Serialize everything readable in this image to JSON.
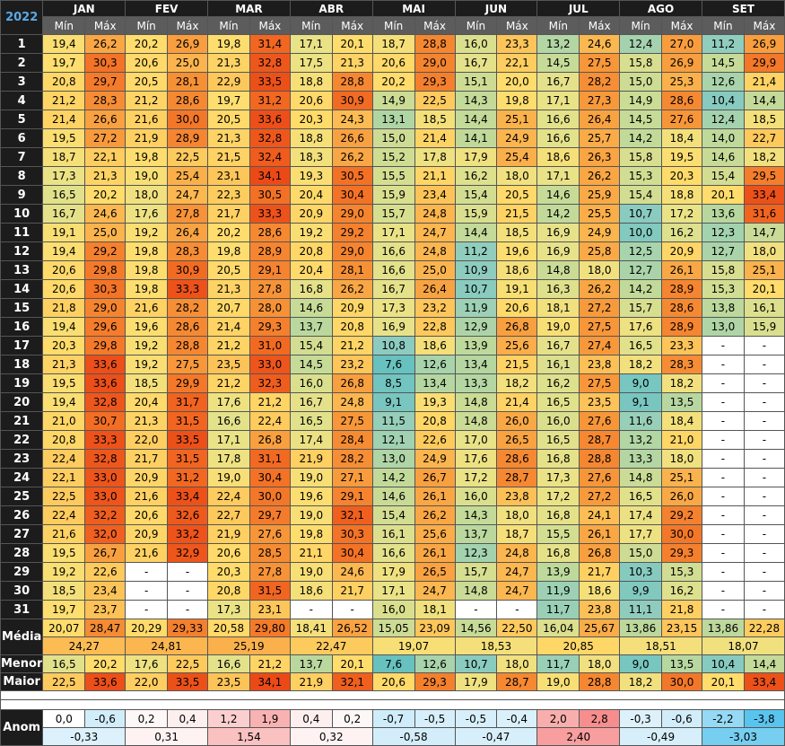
{
  "year": "2022",
  "sub_min": "Mín",
  "sub_max": "Máx",
  "months": [
    "JAN",
    "FEV",
    "MAR",
    "ABR",
    "MAI",
    "JUN",
    "JUL",
    "AGO",
    "SET"
  ],
  "days": [
    {
      "label": "1",
      "v": [
        "19,4",
        "26,2",
        "20,2",
        "26,9",
        "19,8",
        "31,4",
        "17,1",
        "20,1",
        "18,7",
        "28,8",
        "16,0",
        "23,3",
        "13,2",
        "24,6",
        "12,4",
        "27,0",
        "11,2",
        "26,9"
      ]
    },
    {
      "label": "2",
      "v": [
        "19,7",
        "30,3",
        "20,6",
        "25,0",
        "21,3",
        "32,8",
        "17,5",
        "21,3",
        "20,6",
        "29,0",
        "16,7",
        "22,1",
        "14,5",
        "27,5",
        "15,8",
        "26,9",
        "14,5",
        "29,9"
      ]
    },
    {
      "label": "3",
      "v": [
        "20,8",
        "29,7",
        "20,5",
        "28,1",
        "22,9",
        "33,5",
        "18,8",
        "28,8",
        "20,2",
        "29,3",
        "15,1",
        "20,0",
        "16,7",
        "28,2",
        "15,0",
        "25,3",
        "12,6",
        "21,4"
      ]
    },
    {
      "label": "4",
      "v": [
        "21,2",
        "28,3",
        "21,2",
        "28,6",
        "19,7",
        "31,2",
        "20,6",
        "30,9",
        "14,9",
        "22,5",
        "14,3",
        "19,8",
        "17,1",
        "27,3",
        "14,9",
        "28,6",
        "10,4",
        "14,4"
      ]
    },
    {
      "label": "5",
      "v": [
        "21,4",
        "26,6",
        "21,6",
        "30,0",
        "20,5",
        "33,6",
        "20,3",
        "24,3",
        "13,1",
        "18,5",
        "14,4",
        "25,1",
        "16,6",
        "26,4",
        "14,5",
        "27,6",
        "12,4",
        "18,5"
      ]
    },
    {
      "label": "6",
      "v": [
        "19,5",
        "27,2",
        "21,9",
        "28,9",
        "21,3",
        "32,8",
        "18,8",
        "26,6",
        "15,0",
        "21,4",
        "14,1",
        "24,9",
        "16,6",
        "25,7",
        "14,2",
        "18,4",
        "14,0",
        "22,7"
      ]
    },
    {
      "label": "7",
      "v": [
        "18,7",
        "22,1",
        "19,8",
        "22,5",
        "21,5",
        "32,4",
        "18,3",
        "26,2",
        "15,2",
        "17,8",
        "17,9",
        "25,4",
        "18,6",
        "26,3",
        "15,8",
        "19,5",
        "14,6",
        "18,2"
      ]
    },
    {
      "label": "8",
      "v": [
        "17,3",
        "21,3",
        "19,0",
        "25,4",
        "23,1",
        "34,1",
        "19,3",
        "30,5",
        "15,5",
        "21,1",
        "16,2",
        "18,0",
        "17,1",
        "26,2",
        "15,3",
        "20,3",
        "15,4",
        "29,5"
      ]
    },
    {
      "label": "9",
      "v": [
        "16,5",
        "20,2",
        "18,0",
        "24,7",
        "22,3",
        "30,5",
        "20,4",
        "30,4",
        "15,9",
        "23,4",
        "15,4",
        "20,5",
        "14,6",
        "25,9",
        "15,4",
        "18,8",
        "20,1",
        "33,4"
      ]
    },
    {
      "label": "10",
      "v": [
        "16,7",
        "24,6",
        "17,6",
        "27,8",
        "21,7",
        "33,3",
        "20,9",
        "29,0",
        "15,7",
        "24,8",
        "15,9",
        "21,5",
        "14,2",
        "25,5",
        "10,7",
        "17,2",
        "13,6",
        "31,6"
      ]
    },
    {
      "label": "11",
      "v": [
        "19,1",
        "25,0",
        "19,2",
        "26,4",
        "20,2",
        "28,6",
        "19,2",
        "29,2",
        "17,1",
        "24,7",
        "14,4",
        "18,5",
        "16,9",
        "24,9",
        "10,0",
        "16,2",
        "12,3",
        "14,7"
      ]
    },
    {
      "label": "12",
      "v": [
        "19,4",
        "29,2",
        "19,8",
        "28,3",
        "19,8",
        "28,9",
        "20,8",
        "29,0",
        "16,6",
        "24,8",
        "11,2",
        "19,6",
        "16,9",
        "25,8",
        "12,5",
        "20,9",
        "12,7",
        "18,0"
      ]
    },
    {
      "label": "13",
      "v": [
        "20,6",
        "29,8",
        "19,8",
        "30,9",
        "20,5",
        "29,1",
        "20,4",
        "28,1",
        "16,6",
        "25,0",
        "10,9",
        "18,6",
        "14,8",
        "18,0",
        "12,7",
        "26,1",
        "15,8",
        "25,1"
      ]
    },
    {
      "label": "14",
      "v": [
        "20,6",
        "30,3",
        "19,8",
        "33,3",
        "21,3",
        "27,8",
        "16,8",
        "26,2",
        "16,7",
        "26,4",
        "10,7",
        "19,1",
        "16,3",
        "26,2",
        "14,2",
        "28,9",
        "15,3",
        "20,1"
      ]
    },
    {
      "label": "15",
      "v": [
        "21,8",
        "29,0",
        "21,6",
        "28,2",
        "20,7",
        "28,0",
        "14,6",
        "20,9",
        "17,3",
        "23,2",
        "11,9",
        "20,6",
        "18,1",
        "27,2",
        "15,7",
        "28,6",
        "13,8",
        "16,1"
      ]
    },
    {
      "label": "16",
      "v": [
        "19,4",
        "29,6",
        "19,6",
        "28,6",
        "21,4",
        "29,3",
        "13,7",
        "20,8",
        "16,9",
        "22,8",
        "12,9",
        "26,8",
        "19,0",
        "27,5",
        "17,6",
        "28,9",
        "13,0",
        "15,9"
      ]
    },
    {
      "label": "17",
      "v": [
        "20,3",
        "29,8",
        "19,2",
        "28,8",
        "21,2",
        "31,0",
        "15,4",
        "21,2",
        "10,8",
        "18,6",
        "13,9",
        "25,6",
        "16,7",
        "27,4",
        "16,5",
        "23,3",
        "-",
        "-"
      ]
    },
    {
      "label": "18",
      "v": [
        "21,3",
        "33,6",
        "19,2",
        "27,5",
        "23,5",
        "33,0",
        "14,5",
        "23,2",
        "7,6",
        "12,6",
        "13,4",
        "21,5",
        "16,1",
        "23,8",
        "18,2",
        "28,3",
        "-",
        "-"
      ]
    },
    {
      "label": "19",
      "v": [
        "19,5",
        "33,6",
        "18,5",
        "29,9",
        "21,2",
        "32,3",
        "16,0",
        "26,8",
        "8,5",
        "13,4",
        "13,3",
        "18,2",
        "16,2",
        "27,5",
        "9,0",
        "18,2",
        "-",
        "-"
      ]
    },
    {
      "label": "20",
      "v": [
        "19,4",
        "32,8",
        "20,4",
        "31,7",
        "17,6",
        "21,2",
        "16,7",
        "24,8",
        "9,1",
        "19,3",
        "14,8",
        "21,4",
        "16,5",
        "23,5",
        "9,1",
        "13,5",
        "-",
        "-"
      ]
    },
    {
      "label": "21",
      "v": [
        "21,0",
        "30,7",
        "21,3",
        "31,5",
        "16,6",
        "22,4",
        "16,5",
        "27,5",
        "11,5",
        "20,8",
        "14,8",
        "26,0",
        "16,0",
        "27,6",
        "11,6",
        "18,4",
        "-",
        "-"
      ]
    },
    {
      "label": "22",
      "v": [
        "20,8",
        "33,3",
        "22,0",
        "33,5",
        "17,1",
        "26,8",
        "17,4",
        "28,4",
        "12,1",
        "22,6",
        "17,0",
        "26,5",
        "16,5",
        "28,7",
        "13,2",
        "21,0",
        "-",
        "-"
      ]
    },
    {
      "label": "23",
      "v": [
        "22,4",
        "32,8",
        "21,7",
        "31,5",
        "17,8",
        "31,1",
        "21,9",
        "28,2",
        "13,0",
        "24,9",
        "17,6",
        "28,6",
        "16,8",
        "28,8",
        "13,3",
        "18,0",
        "-",
        "-"
      ]
    },
    {
      "label": "24",
      "v": [
        "22,1",
        "33,0",
        "20,9",
        "31,2",
        "19,0",
        "30,4",
        "19,0",
        "27,1",
        "14,2",
        "26,7",
        "17,2",
        "28,7",
        "17,3",
        "27,6",
        "14,8",
        "25,1",
        "-",
        "-"
      ]
    },
    {
      "label": "25",
      "v": [
        "22,5",
        "33,0",
        "21,6",
        "33,4",
        "22,4",
        "30,0",
        "19,6",
        "29,1",
        "14,6",
        "26,1",
        "16,0",
        "23,8",
        "17,2",
        "27,2",
        "16,5",
        "26,0",
        "-",
        "-"
      ]
    },
    {
      "label": "26",
      "v": [
        "22,4",
        "32,2",
        "20,6",
        "32,6",
        "22,7",
        "29,7",
        "19,0",
        "32,1",
        "15,4",
        "26,2",
        "14,3",
        "18,0",
        "16,8",
        "24,1",
        "17,4",
        "29,2",
        "-",
        "-"
      ]
    },
    {
      "label": "27",
      "v": [
        "21,6",
        "32,0",
        "20,9",
        "33,2",
        "21,9",
        "27,6",
        "19,8",
        "30,3",
        "16,1",
        "25,6",
        "13,7",
        "18,7",
        "15,5",
        "26,1",
        "17,7",
        "30,0",
        "-",
        "-"
      ]
    },
    {
      "label": "28",
      "v": [
        "19,5",
        "26,7",
        "21,6",
        "32,9",
        "20,6",
        "28,5",
        "21,1",
        "30,4",
        "16,6",
        "26,1",
        "12,3",
        "24,8",
        "16,8",
        "26,8",
        "15,0",
        "29,3",
        "-",
        "-"
      ]
    },
    {
      "label": "29",
      "v": [
        "19,2",
        "22,6",
        "-",
        "-",
        "20,3",
        "27,8",
        "19,0",
        "24,6",
        "17,9",
        "26,5",
        "15,7",
        "24,7",
        "13,9",
        "21,7",
        "10,3",
        "15,3",
        "-",
        "-"
      ]
    },
    {
      "label": "30",
      "v": [
        "18,5",
        "23,4",
        "-",
        "-",
        "20,8",
        "31,5",
        "18,6",
        "21,7",
        "17,1",
        "24,7",
        "14,8",
        "24,7",
        "11,9",
        "18,6",
        "9,9",
        "16,2",
        "-",
        "-"
      ]
    },
    {
      "label": "31",
      "v": [
        "19,7",
        "23,7",
        "-",
        "-",
        "17,3",
        "23,1",
        "-",
        "-",
        "16,0",
        "18,1",
        "-",
        "-",
        "11,7",
        "23,8",
        "11,1",
        "21,8",
        "-",
        "-"
      ]
    }
  ],
  "media": {
    "label": "Média",
    "v": [
      "20,07",
      "28,47",
      "20,29",
      "29,33",
      "20,58",
      "29,80",
      "18,41",
      "26,52",
      "15,05",
      "23,09",
      "14,56",
      "22,50",
      "16,04",
      "25,67",
      "13,86",
      "23,15",
      "13,86",
      "22,28"
    ],
    "avg": [
      "24,27",
      "24,81",
      "25,19",
      "22,47",
      "19,07",
      "18,53",
      "20,85",
      "18,51",
      "18,07"
    ]
  },
  "menor": {
    "label": "Menor",
    "v": [
      "16,5",
      "20,2",
      "17,6",
      "22,5",
      "16,6",
      "21,2",
      "13,7",
      "20,1",
      "7,6",
      "12,6",
      "10,7",
      "18,0",
      "11,7",
      "18,0",
      "9,0",
      "13,5",
      "10,4",
      "14,4"
    ]
  },
  "maior": {
    "label": "Maior",
    "v": [
      "22,5",
      "33,6",
      "22,0",
      "33,5",
      "23,5",
      "34,1",
      "21,9",
      "32,1",
      "20,6",
      "29,3",
      "17,9",
      "28,7",
      "19,0",
      "28,8",
      "18,2",
      "30,0",
      "20,1",
      "33,4"
    ]
  },
  "anom": {
    "label": "Anom",
    "v": [
      "0,0",
      "-0,6",
      "0,2",
      "0,4",
      "1,2",
      "1,9",
      "0,4",
      "0,2",
      "-0,7",
      "-0,5",
      "-0,5",
      "-0,4",
      "2,0",
      "2,8",
      "-0,3",
      "-0,6",
      "-2,2",
      "-3,8"
    ],
    "avg": [
      "-0,33",
      "0,31",
      "1,54",
      "0,32",
      "-0,58",
      "-0,47",
      "2,40",
      "-0,49",
      "-3,03"
    ]
  }
}
